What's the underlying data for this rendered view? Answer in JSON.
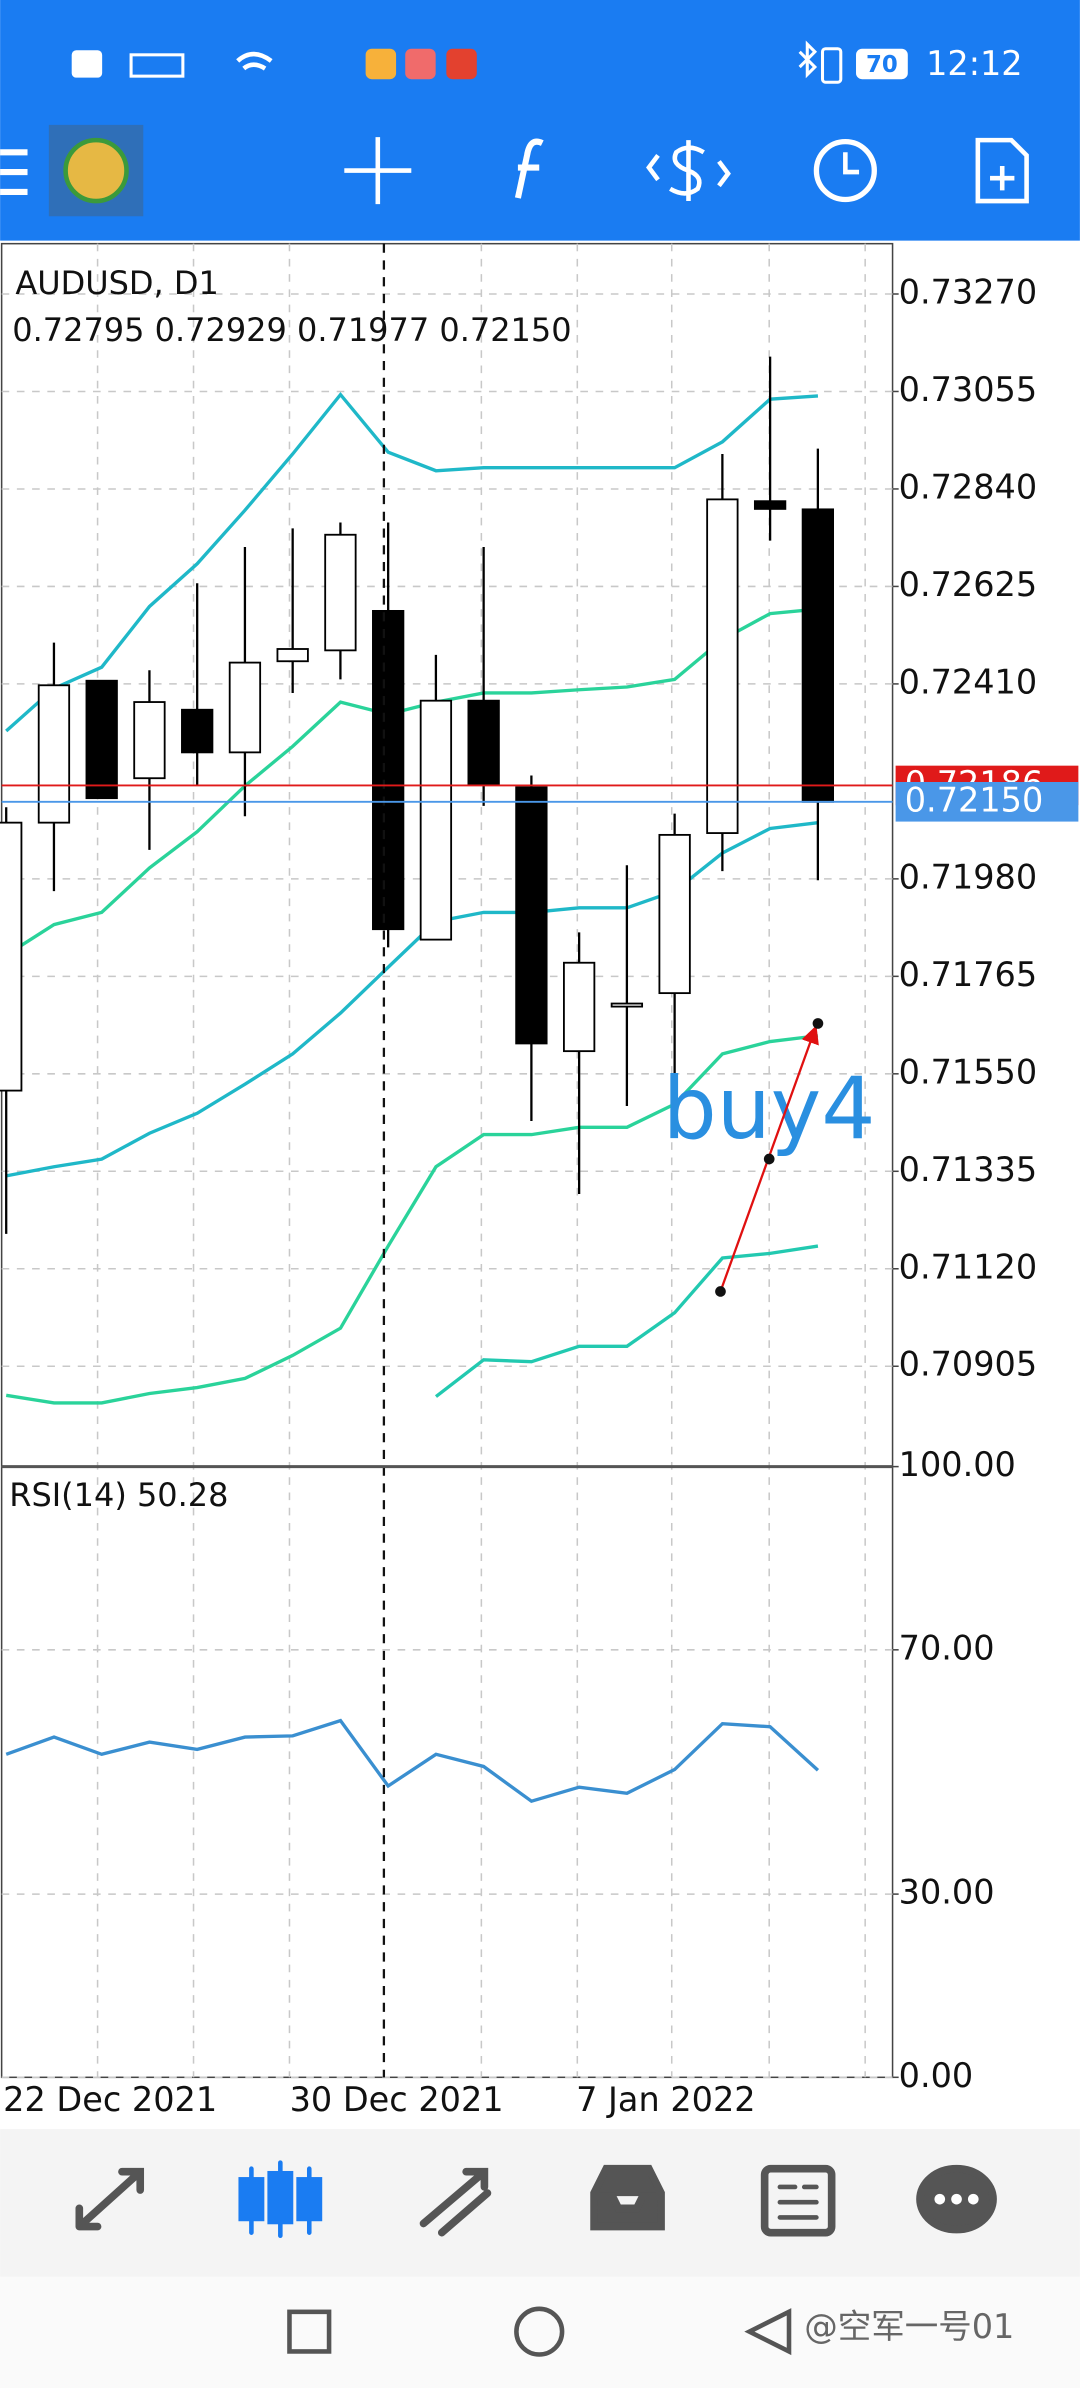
{
  "status_bar": {
    "time": "12:12",
    "battery": "70"
  },
  "watermark": "@空军一号01",
  "chart_data": [
    {
      "type": "candlestick",
      "title": "AUDUSD, D1",
      "subtitle": "0.72795 0.72929 0.71977 0.72150",
      "categories": [
        "22 Dec 2021",
        null,
        null,
        null,
        null,
        null,
        "30 Dec 2021",
        null,
        null,
        null,
        null,
        null,
        "7 Jan 2022",
        null,
        null,
        null,
        null,
        null
      ],
      "open": [
        0.71513,
        0.72104,
        0.72417,
        0.72202,
        0.72353,
        0.72259,
        0.7246,
        0.72484,
        0.72571,
        0.71846,
        0.72373,
        0.72182,
        0.716,
        0.71705,
        0.71728,
        0.72081,
        0.72813,
        0.72795
      ],
      "high": [
        0.72138,
        0.72501,
        0.72417,
        0.7244,
        0.72632,
        0.72712,
        0.72753,
        0.72766,
        0.72766,
        0.72474,
        0.72712,
        0.72208,
        0.71862,
        0.7201,
        0.72124,
        0.72917,
        0.73132,
        0.72929
      ],
      "low": [
        0.71197,
        0.71953,
        0.72158,
        0.72044,
        0.72185,
        0.72118,
        0.7239,
        0.7242,
        0.71829,
        0.71846,
        0.72141,
        0.71446,
        0.71285,
        0.71479,
        0.71547,
        0.71997,
        0.72726,
        0.71977
      ],
      "close": [
        0.72104,
        0.72407,
        0.72158,
        0.7237,
        0.72259,
        0.72457,
        0.72487,
        0.72739,
        0.71869,
        0.72373,
        0.72188,
        0.71617,
        0.71795,
        0.71705,
        0.72077,
        0.72817,
        0.72796,
        0.7215
      ],
      "up_color": "#ffffff",
      "down_color": "#000000",
      "series": [
        {
          "color": "#1fb8c8",
          "values": [
            0.72306,
            0.724,
            0.72447,
            0.72581,
            0.72675,
            0.72793,
            0.72917,
            0.73048,
            0.72921,
            0.7288,
            0.72887,
            0.72887,
            0.72887,
            0.72887,
            0.72887,
            0.72944,
            0.73038,
            0.73045
          ]
        },
        {
          "color": "#2ad39a",
          "values": [
            0.71812,
            0.71879,
            0.71906,
            0.72004,
            0.72084,
            0.72185,
            0.72272,
            0.7237,
            0.72343,
            0.7237,
            0.7239,
            0.7239,
            0.72397,
            0.72403,
            0.7242,
            0.72508,
            0.72565,
            0.72575
          ]
        },
        {
          "color": "#1fb8c8",
          "values": [
            0.71325,
            0.71345,
            0.71362,
            0.71419,
            0.71463,
            0.71527,
            0.71594,
            0.71684,
            0.71785,
            0.71886,
            0.71906,
            0.71906,
            0.71916,
            0.71916,
            0.71953,
            0.72037,
            0.72091,
            0.72104
          ]
        },
        {
          "color": "#2ad39a",
          "values": [
            0.70841,
            0.70824,
            0.70824,
            0.70845,
            0.70858,
            0.70878,
            0.70929,
            0.70989,
            0.7117,
            0.71345,
            0.71416,
            0.71416,
            0.71432,
            0.71432,
            0.71483,
            0.71594,
            0.71621,
            0.71634
          ]
        },
        {
          "color": "#22c9b0",
          "values": [
            null,
            null,
            null,
            null,
            null,
            null,
            null,
            null,
            null,
            0.70838,
            0.70919,
            0.70915,
            0.70949,
            0.70949,
            0.71023,
            0.71144,
            0.71154,
            0.7117
          ]
        }
      ],
      "price_lines": [
        {
          "value": 0.72186,
          "label": "0.72186",
          "color": "#e01a1a"
        },
        {
          "value": 0.7215,
          "label": "0.72150",
          "color": "#4a97e8"
        }
      ],
      "annotation": "buy4",
      "ylim": [
        0.70687,
        0.73381
      ],
      "yticks": [
        {
          "value": 0.7327,
          "label": "0.73270"
        },
        {
          "value": 0.73055,
          "label": "0.73055"
        },
        {
          "value": 0.7284,
          "label": "0.72840"
        },
        {
          "value": 0.72625,
          "label": "0.72625"
        },
        {
          "value": 0.7241,
          "label": "0.72410"
        },
        {
          "value": 0.7198,
          "label": "0.71980"
        },
        {
          "value": 0.71765,
          "label": "0.71765"
        },
        {
          "value": 0.7155,
          "label": "0.71550"
        },
        {
          "value": 0.71335,
          "label": "0.71335"
        },
        {
          "value": 0.7112,
          "label": "0.71120"
        },
        {
          "value": 0.70905,
          "label": "0.70905"
        }
      ],
      "grid": true
    },
    {
      "type": "line",
      "title": "RSI(14) 50.28",
      "color": "#3a8fd0",
      "values": [
        52.9,
        55.7,
        52.9,
        54.9,
        53.7,
        55.7,
        55.9,
        58.4,
        47.7,
        52.9,
        50.9,
        45.2,
        47.5,
        46.5,
        50.4,
        57.9,
        57.4,
        50.28
      ],
      "ylim": [
        0,
        100
      ],
      "yticks": [
        {
          "value": 100,
          "label": "100.00"
        },
        {
          "value": 70,
          "label": "70.00"
        },
        {
          "value": 30,
          "label": "30.00"
        },
        {
          "value": 0,
          "label": "0.00"
        }
      ],
      "grid": true
    }
  ]
}
